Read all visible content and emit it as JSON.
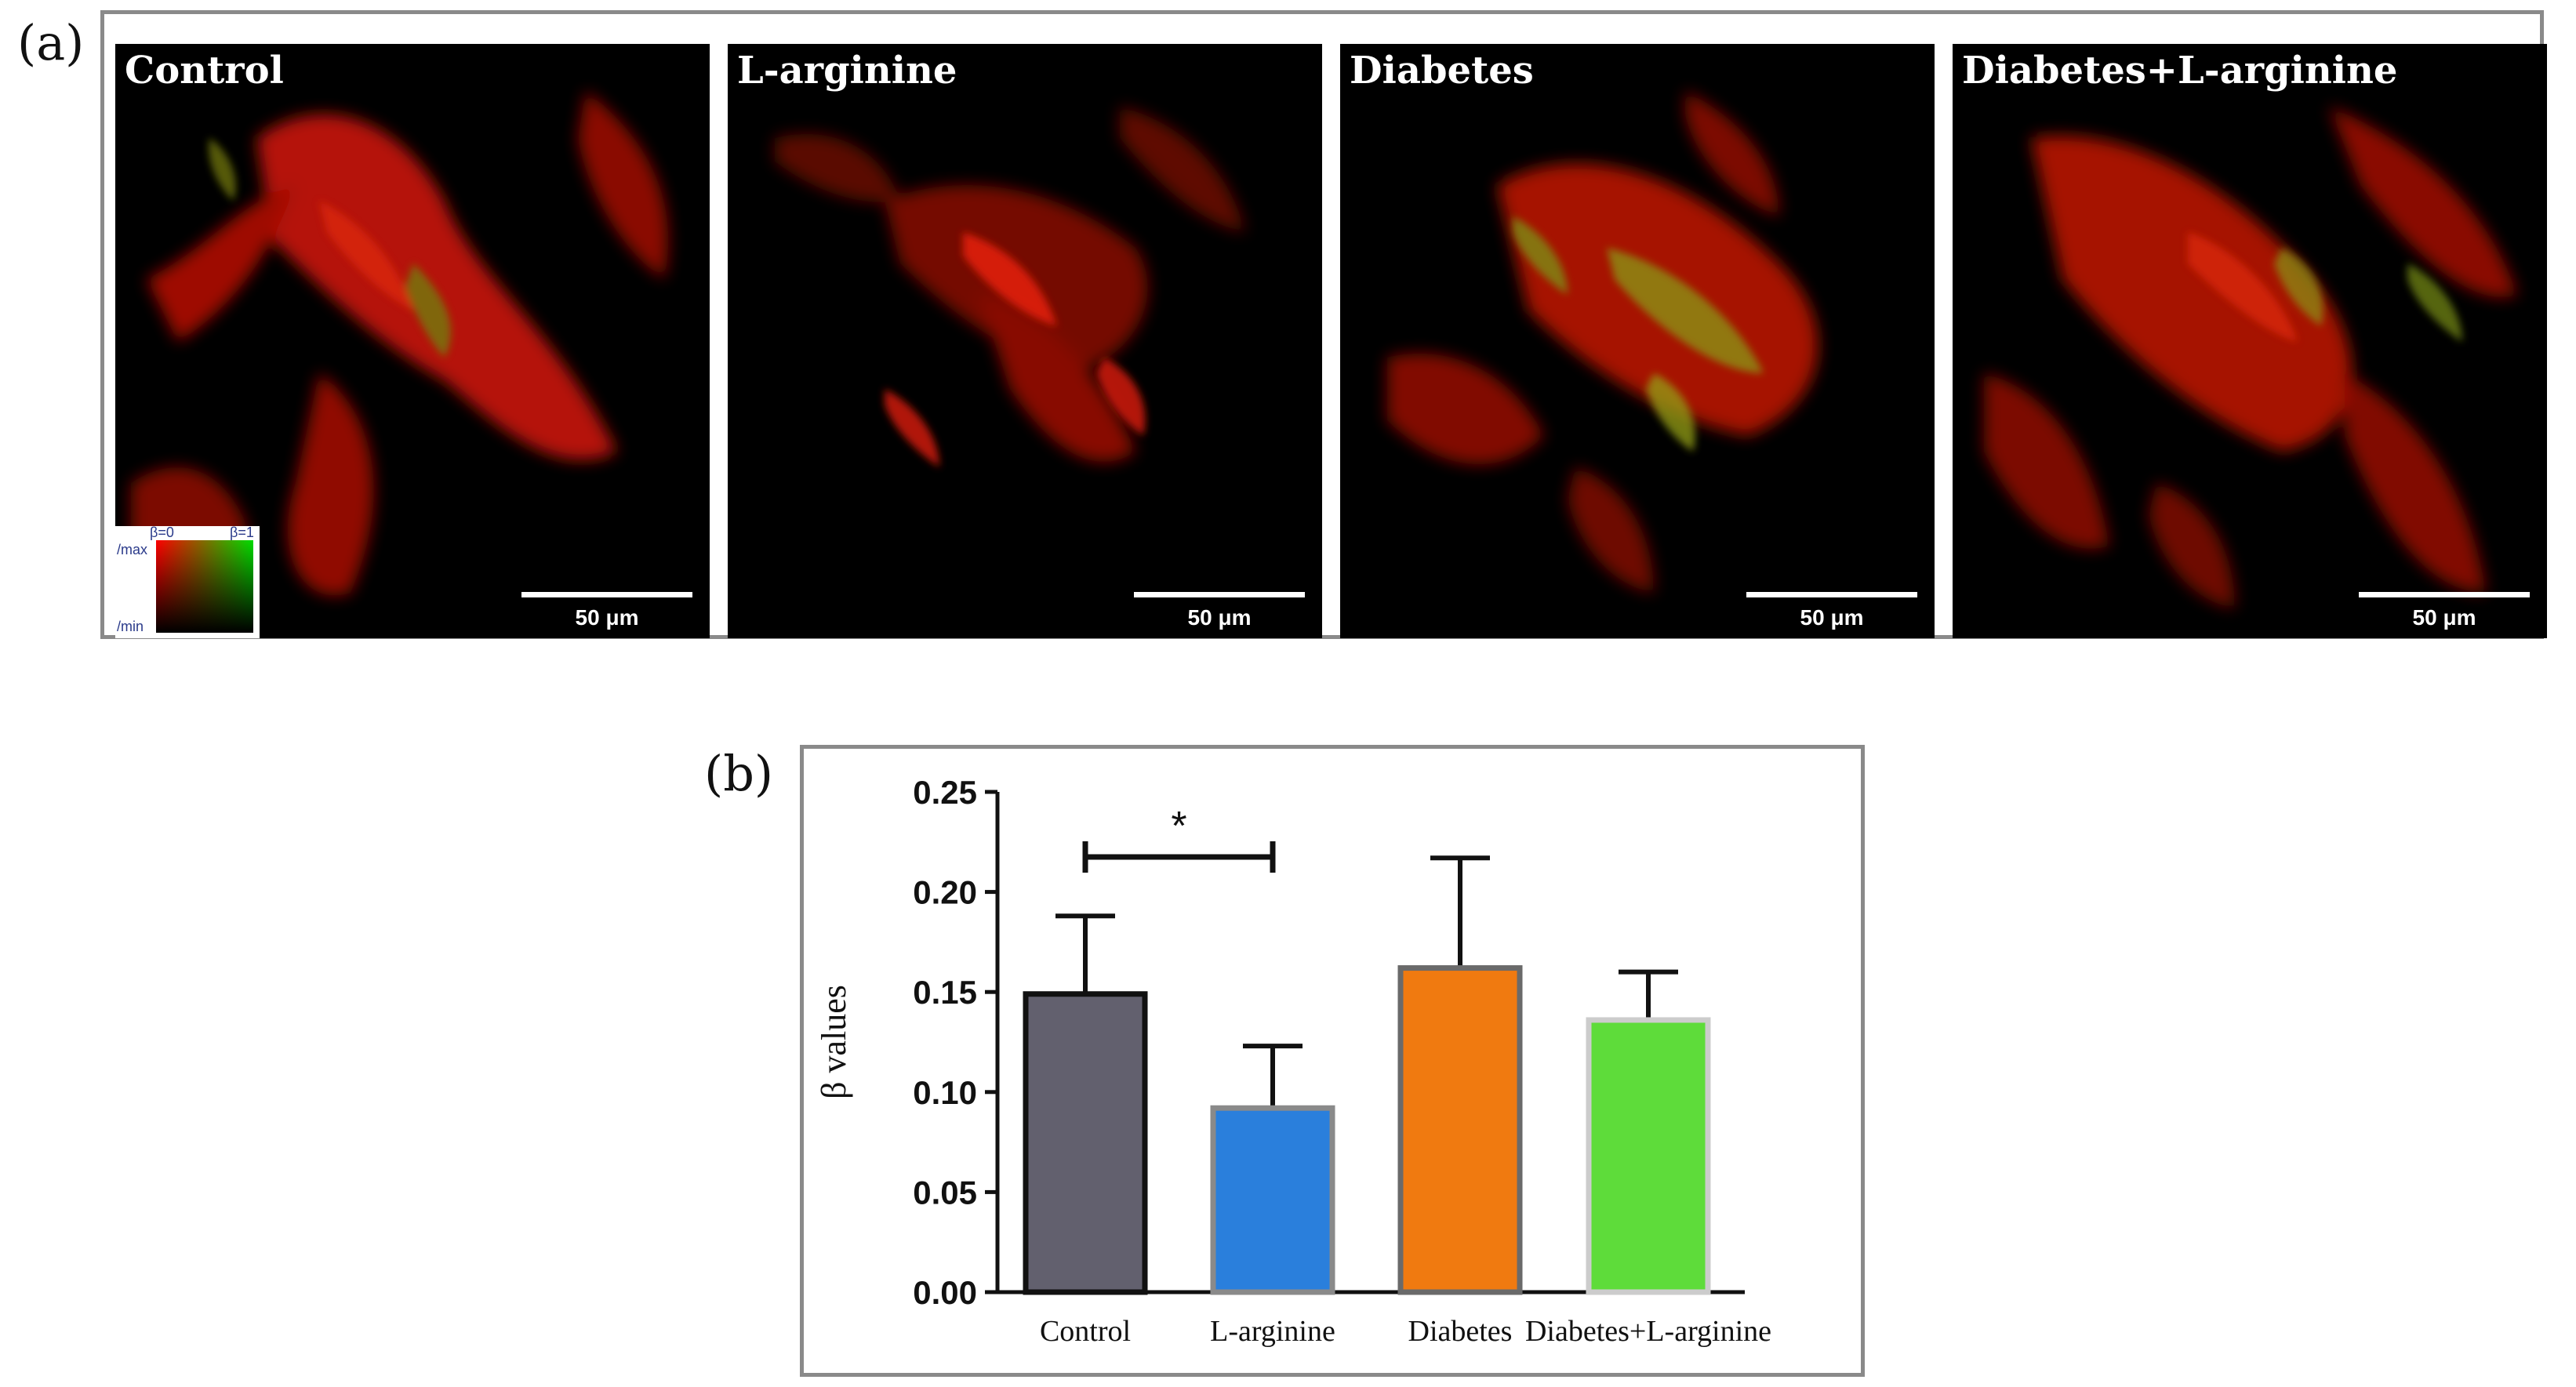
{
  "panel_a": {
    "label": "(a)",
    "scale_bar_label": "50 μm",
    "legend": {
      "beta0": "β=0",
      "beta1": "β=1",
      "max": "/max",
      "min": "/min"
    },
    "images": [
      {
        "title": "Control"
      },
      {
        "title": "L-arginine"
      },
      {
        "title": "Diabetes"
      },
      {
        "title": "Diabetes+L-arginine"
      }
    ]
  },
  "panel_b": {
    "label": "(b)"
  },
  "chart_data": {
    "type": "bar",
    "categories": [
      "Control",
      "L-arginine",
      "Diabetes",
      "Diabetes+L-arginine"
    ],
    "values": [
      0.149,
      0.092,
      0.162,
      0.136
    ],
    "errors": [
      0.039,
      0.031,
      0.055,
      0.024
    ],
    "ylabel": "β values",
    "xlabel": "",
    "ylim": [
      0,
      0.25
    ],
    "yticks": [
      "0.00",
      "0.05",
      "0.10",
      "0.15",
      "0.20",
      "0.25"
    ],
    "grid": false,
    "bar_colors": [
      "#62606e",
      "#2a7fdc",
      "#f07a10",
      "#5edc3a"
    ],
    "bar_outline_colors": [
      "#111111",
      "#8a8a8a",
      "#6a6a6a",
      "#cccccc"
    ],
    "significance": {
      "label": "*",
      "between": [
        0,
        1
      ]
    }
  }
}
